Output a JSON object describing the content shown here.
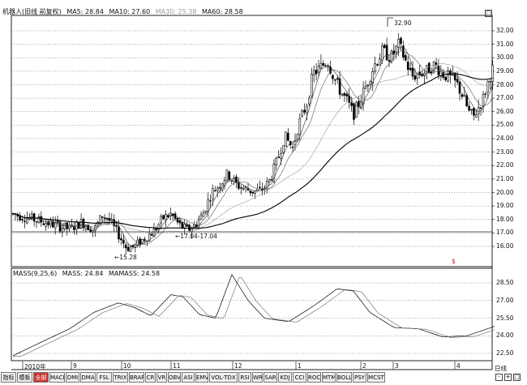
{
  "header": {
    "title": "机器人(旧线 前复权)",
    "ma5": "MA5: 28.84",
    "ma10": "MA10: 27.60",
    "ma30": "MA30: 25.38",
    "ma60": "MA60: 28.58"
  },
  "annotations": {
    "high": "32.90",
    "low": "15.28",
    "range": "17.04-17.04"
  },
  "price_axis": {
    "labels": [
      "32.00",
      "31.00",
      "30.00",
      "29.00",
      "28.00",
      "27.00",
      "26.00",
      "25.00",
      "24.00",
      "23.00",
      "22.00",
      "21.00",
      "20.00",
      "19.00",
      "18.00",
      "17.00",
      "16.00"
    ],
    "values": [
      32,
      31,
      30,
      29,
      28,
      27,
      26,
      25,
      24,
      23,
      22,
      21,
      20,
      19,
      18,
      17,
      16
    ]
  },
  "indicator": {
    "label": "MASS(9,25,6)",
    "mass": "MASS: 24.84",
    "mamass": "MAMASS: 24.58",
    "axis_labels": [
      "28.50",
      "27.00",
      "25.50",
      "24.00",
      "22.50"
    ],
    "axis_values": [
      28.5,
      27.0,
      25.5,
      24.0,
      22.5
    ]
  },
  "date_axis": {
    "labels": [
      "2010年",
      "9",
      "10",
      "11",
      "12",
      "1",
      "2",
      "3",
      "4"
    ]
  },
  "indicator_tabs": [
    "指标",
    "模板",
    "全部",
    "MACD",
    "DMI",
    "DMA",
    "FSL",
    "TRIX",
    "BRAR",
    "CR",
    "VR",
    "OBV",
    "ASI",
    "EMV",
    "VOL-TDX",
    "RSI",
    "WR",
    "SAR",
    "KDJ",
    "CCI",
    "ROC",
    "MTM",
    "BOLL",
    "PSY",
    "MCST"
  ],
  "active_tab": "全部",
  "corner": {
    "period_label": "日线",
    "minus": "-",
    "plus": "+",
    "box": "□"
  },
  "marker": "$",
  "colors": {
    "background": "#ffffff",
    "candle": "#000000",
    "active_tab": "#cc3333",
    "marker": "#cc2222"
  }
}
